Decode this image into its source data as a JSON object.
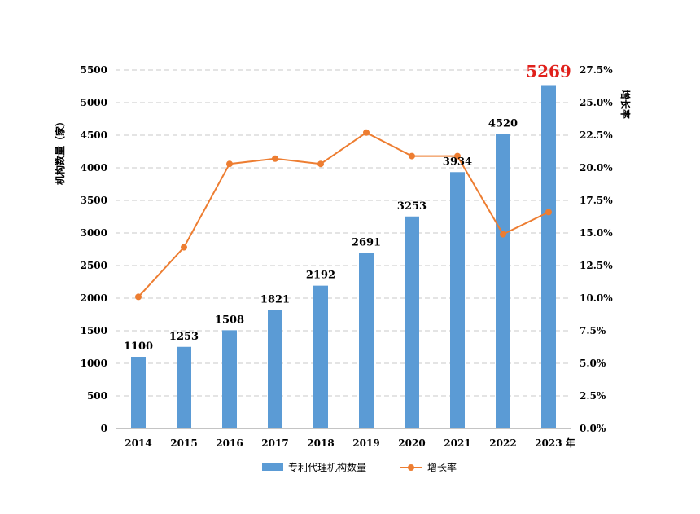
{
  "chart_data": {
    "type": "bar",
    "categories": [
      "2014",
      "2015",
      "2016",
      "2017",
      "2018",
      "2019",
      "2020",
      "2021",
      "2022",
      "2023"
    ],
    "x_unit_suffix": "年",
    "series": [
      {
        "name": "专利代理机构数量",
        "type": "bar",
        "axis": "left",
        "color": "#5b9bd5",
        "values": [
          1100,
          1253,
          1508,
          1821,
          2192,
          2691,
          3253,
          3934,
          4520,
          5269
        ],
        "labels": [
          "1100",
          "1253",
          "1508",
          "1821",
          "2192",
          "2691",
          "3253",
          "3934",
          "4520",
          "5269"
        ]
      },
      {
        "name": "增长率",
        "type": "line",
        "axis": "right",
        "color": "#ed7d31",
        "values": [
          10.1,
          13.9,
          20.3,
          20.7,
          20.3,
          22.7,
          20.9,
          20.9,
          14.9,
          16.6
        ]
      }
    ],
    "highlight": {
      "index": 9,
      "color": "#e0201b"
    },
    "ylabel_left": "机构数量（家）",
    "ylabel_right": "增长率",
    "ylim_left": [
      0,
      5500
    ],
    "ylim_right": [
      0,
      27.5
    ],
    "yticks_left": [
      "0",
      "500",
      "1000",
      "1500",
      "2000",
      "2500",
      "3000",
      "3500",
      "4000",
      "4500",
      "5000",
      "5500"
    ],
    "yticks_right": [
      "0.0%",
      "2.5%",
      "5.0%",
      "7.5%",
      "10.0%",
      "12.5%",
      "15.0%",
      "17.5%",
      "20.0%",
      "22.5%",
      "25.0%",
      "27.5%"
    ],
    "grid": "horizontal-dashed",
    "legend": "bottom"
  }
}
